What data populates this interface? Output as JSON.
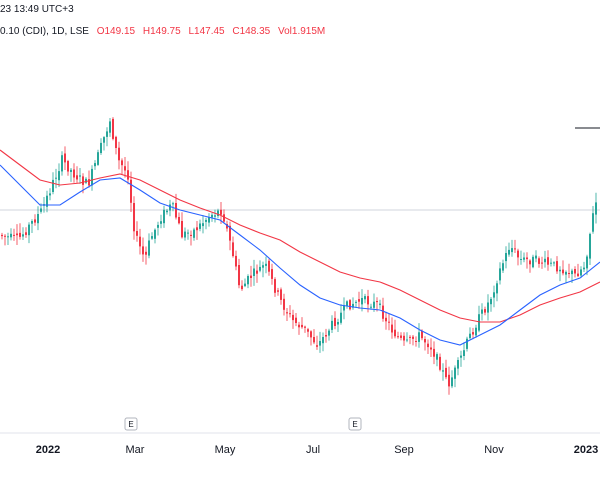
{
  "header": {
    "time_text": "23 13:49 UTC+3",
    "symbol_text": "0.10 (CDI), 1D, LSE",
    "open": "O149.15",
    "high": "H149.75",
    "low": "L147.45",
    "close": "C148.35",
    "volume": "Vol1.915M"
  },
  "colors": {
    "up": "#26a69a",
    "down": "#f23645",
    "ma_fast": "#2962ff",
    "ma_slow": "#f23645",
    "price_line": "#9598a1"
  },
  "x_axis": {
    "labels": [
      {
        "text": "2022",
        "bold": true
      },
      {
        "text": "Mar",
        "bold": false
      },
      {
        "text": "May",
        "bold": false
      },
      {
        "text": "Jul",
        "bold": false
      },
      {
        "text": "Sep",
        "bold": false
      },
      {
        "text": "Nov",
        "bold": false
      },
      {
        "text": "2023",
        "bold": true
      }
    ]
  },
  "events": [
    {
      "label": "E",
      "date": "Mar"
    },
    {
      "label": "E",
      "date": "Aug"
    }
  ],
  "chart_data": {
    "type": "candlestick",
    "indicators": [
      "moving average (fast)",
      "moving average (slow)"
    ],
    "path_points": [
      [
        0,
        235
      ],
      [
        18,
        240
      ],
      [
        30,
        225
      ],
      [
        42,
        210
      ],
      [
        48,
        195
      ],
      [
        62,
        160
      ],
      [
        75,
        175
      ],
      [
        88,
        185
      ],
      [
        100,
        150
      ],
      [
        110,
        120
      ],
      [
        118,
        160
      ],
      [
        128,
        175
      ],
      [
        135,
        235
      ],
      [
        145,
        260
      ],
      [
        150,
        240
      ],
      [
        162,
        215
      ],
      [
        172,
        205
      ],
      [
        182,
        235
      ],
      [
        195,
        230
      ],
      [
        210,
        215
      ],
      [
        222,
        210
      ],
      [
        232,
        250
      ],
      [
        240,
        290
      ],
      [
        252,
        275
      ],
      [
        265,
        265
      ],
      [
        280,
        300
      ],
      [
        292,
        320
      ],
      [
        305,
        330
      ],
      [
        318,
        345
      ],
      [
        332,
        325
      ],
      [
        348,
        305
      ],
      [
        362,
        300
      ],
      [
        378,
        305
      ],
      [
        392,
        330
      ],
      [
        405,
        345
      ],
      [
        418,
        335
      ],
      [
        430,
        345
      ],
      [
        440,
        365
      ],
      [
        448,
        385
      ],
      [
        458,
        365
      ],
      [
        468,
        340
      ],
      [
        478,
        320
      ],
      [
        490,
        300
      ],
      [
        500,
        270
      ],
      [
        510,
        245
      ],
      [
        520,
        260
      ],
      [
        535,
        260
      ],
      [
        550,
        265
      ],
      [
        562,
        268
      ],
      [
        575,
        275
      ],
      [
        585,
        265
      ],
      [
        592,
        220
      ],
      [
        600,
        185
      ]
    ],
    "ma_fast_points": [
      [
        0,
        165
      ],
      [
        20,
        185
      ],
      [
        40,
        205
      ],
      [
        60,
        205
      ],
      [
        80,
        192
      ],
      [
        100,
        180
      ],
      [
        120,
        178
      ],
      [
        140,
        190
      ],
      [
        160,
        203
      ],
      [
        180,
        210
      ],
      [
        200,
        215
      ],
      [
        220,
        220
      ],
      [
        240,
        235
      ],
      [
        260,
        250
      ],
      [
        280,
        268
      ],
      [
        300,
        285
      ],
      [
        320,
        298
      ],
      [
        340,
        305
      ],
      [
        360,
        308
      ],
      [
        380,
        310
      ],
      [
        400,
        318
      ],
      [
        420,
        330
      ],
      [
        440,
        340
      ],
      [
        460,
        345
      ],
      [
        480,
        335
      ],
      [
        500,
        325
      ],
      [
        520,
        310
      ],
      [
        540,
        295
      ],
      [
        560,
        285
      ],
      [
        580,
        278
      ],
      [
        600,
        262
      ]
    ],
    "ma_slow_points": [
      [
        0,
        150
      ],
      [
        20,
        165
      ],
      [
        40,
        180
      ],
      [
        60,
        185
      ],
      [
        80,
        183
      ],
      [
        100,
        178
      ],
      [
        120,
        174
      ],
      [
        140,
        180
      ],
      [
        160,
        190
      ],
      [
        180,
        200
      ],
      [
        200,
        208
      ],
      [
        220,
        215
      ],
      [
        240,
        225
      ],
      [
        260,
        233
      ],
      [
        280,
        240
      ],
      [
        300,
        252
      ],
      [
        320,
        262
      ],
      [
        340,
        272
      ],
      [
        360,
        278
      ],
      [
        380,
        282
      ],
      [
        400,
        290
      ],
      [
        420,
        300
      ],
      [
        440,
        310
      ],
      [
        460,
        318
      ],
      [
        480,
        322
      ],
      [
        500,
        322
      ],
      [
        520,
        315
      ],
      [
        540,
        305
      ],
      [
        560,
        298
      ],
      [
        580,
        292
      ],
      [
        600,
        282
      ]
    ],
    "last_price_line_y": 210
  }
}
